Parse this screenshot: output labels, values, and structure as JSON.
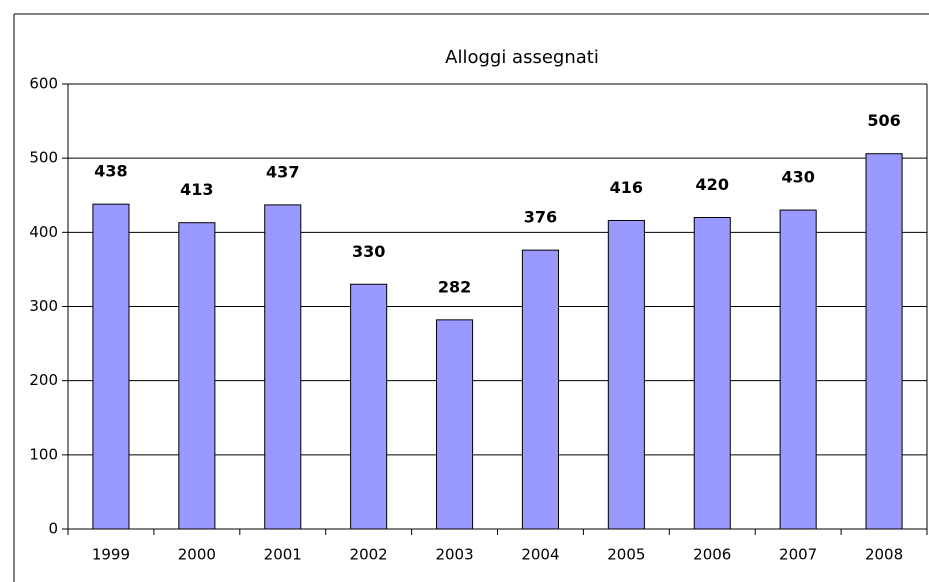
{
  "chart_data": {
    "type": "bar",
    "title": "Alloggi assegnati",
    "categories": [
      "1999",
      "2000",
      "2001",
      "2002",
      "2003",
      "2004",
      "2005",
      "2006",
      "2007",
      "2008"
    ],
    "values": [
      438,
      413,
      437,
      330,
      282,
      376,
      416,
      420,
      430,
      506
    ],
    "color": "#9999ff",
    "ylim": [
      0,
      600
    ],
    "yticks": [
      0,
      100,
      200,
      300,
      400,
      500,
      600
    ],
    "grid": true
  }
}
